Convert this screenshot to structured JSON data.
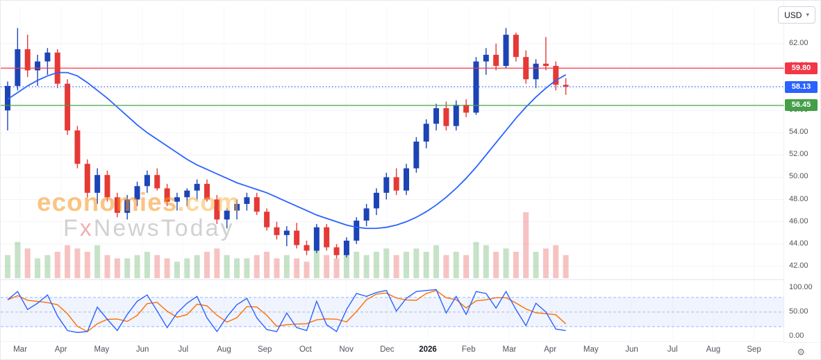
{
  "toolbar": {
    "currency_label": "USD"
  },
  "icons": {
    "chevron_down": "▾",
    "gear": "⚙"
  },
  "watermark": {
    "brand": "economies",
    "brand_suffix": ".com",
    "sub_prefix": "F",
    "sub_x": "x",
    "sub_rest": "NewsToday"
  },
  "time_axis": {
    "labels": [
      "Mar",
      "Apr",
      "May",
      "Jun",
      "Jul",
      "Aug",
      "Sep",
      "Oct",
      "Nov",
      "Dec",
      "2026",
      "Feb",
      "Mar",
      "Apr",
      "May",
      "Jun",
      "Jul",
      "Aug",
      "Sep"
    ],
    "emphasized": "2026"
  },
  "chart_data": {
    "type": "candlestick",
    "title": "",
    "xlabel": "",
    "ylabel": "USD",
    "legend": "none",
    "grid": "faint",
    "price_pane": {
      "ylim": [
        40.9,
        65.4
      ],
      "grid_prices": [
        62,
        60,
        58,
        56,
        54,
        52,
        50,
        48,
        46,
        44,
        42
      ],
      "up_color": "#1c44b5",
      "down_color": "#e53935",
      "ma_color": "#2962ff",
      "ohlc_order": [
        "open",
        "high",
        "low",
        "close"
      ],
      "candles_weekly_ohlc": [
        [
          56.0,
          58.6,
          54.2,
          58.2
        ],
        [
          58.2,
          63.4,
          57.8,
          61.5
        ],
        [
          61.5,
          62.8,
          59.0,
          59.6
        ],
        [
          59.6,
          61.0,
          58.2,
          60.4
        ],
        [
          60.4,
          61.6,
          59.2,
          61.2
        ],
        [
          61.2,
          61.5,
          58.0,
          58.4
        ],
        [
          58.4,
          58.8,
          53.8,
          54.2
        ],
        [
          54.2,
          54.6,
          50.8,
          51.2
        ],
        [
          51.2,
          51.6,
          48.2,
          48.6
        ],
        [
          48.6,
          50.8,
          47.6,
          50.2
        ],
        [
          50.2,
          50.6,
          47.8,
          48.2
        ],
        [
          48.2,
          48.6,
          46.4,
          46.8
        ],
        [
          46.8,
          48.4,
          46.2,
          48.0
        ],
        [
          48.0,
          49.6,
          47.4,
          49.2
        ],
        [
          49.2,
          50.6,
          48.6,
          50.2
        ],
        [
          50.2,
          50.8,
          48.8,
          49.0
        ],
        [
          49.0,
          49.4,
          47.4,
          47.8
        ],
        [
          47.8,
          48.6,
          47.0,
          48.2
        ],
        [
          48.2,
          49.0,
          47.4,
          48.8
        ],
        [
          48.8,
          49.8,
          48.0,
          49.4
        ],
        [
          49.4,
          49.8,
          47.8,
          48.0
        ],
        [
          48.0,
          48.4,
          45.8,
          46.2
        ],
        [
          46.2,
          47.2,
          45.4,
          47.0
        ],
        [
          47.0,
          48.0,
          46.2,
          47.6
        ],
        [
          47.6,
          48.6,
          47.0,
          48.2
        ],
        [
          48.2,
          48.6,
          46.6,
          46.9
        ],
        [
          46.9,
          47.2,
          45.2,
          45.5
        ],
        [
          45.5,
          46.0,
          44.4,
          44.8
        ],
        [
          44.8,
          45.6,
          43.8,
          45.2
        ],
        [
          45.2,
          45.9,
          43.6,
          43.9
        ],
        [
          43.9,
          44.3,
          43.0,
          43.4
        ],
        [
          43.4,
          45.8,
          43.2,
          45.5
        ],
        [
          45.5,
          45.8,
          43.4,
          43.7
        ],
        [
          43.7,
          44.0,
          42.7,
          43.0
        ],
        [
          43.0,
          44.6,
          42.8,
          44.3
        ],
        [
          44.3,
          46.4,
          44.0,
          46.1
        ],
        [
          46.1,
          47.6,
          45.6,
          47.2
        ],
        [
          47.2,
          49.0,
          46.6,
          48.6
        ],
        [
          48.6,
          50.4,
          48.0,
          50.0
        ],
        [
          50.0,
          50.8,
          48.4,
          48.8
        ],
        [
          48.8,
          51.2,
          48.4,
          50.8
        ],
        [
          50.8,
          53.6,
          50.4,
          53.2
        ],
        [
          53.2,
          55.2,
          52.6,
          54.8
        ],
        [
          54.8,
          56.6,
          54.2,
          56.2
        ],
        [
          56.2,
          56.8,
          54.2,
          54.6
        ],
        [
          54.6,
          56.9,
          54.2,
          56.5
        ],
        [
          56.5,
          57.0,
          55.4,
          55.8
        ],
        [
          55.8,
          60.8,
          55.6,
          60.4
        ],
        [
          60.4,
          61.6,
          59.2,
          61.0
        ],
        [
          61.0,
          62.0,
          59.6,
          60.0
        ],
        [
          60.0,
          63.4,
          59.8,
          62.8
        ],
        [
          62.8,
          63.0,
          60.4,
          60.8
        ],
        [
          60.8,
          61.4,
          58.4,
          58.8
        ],
        [
          58.8,
          60.6,
          58.0,
          60.2
        ],
        [
          60.2,
          62.6,
          59.6,
          60.0
        ],
        [
          60.0,
          60.4,
          57.8,
          58.3
        ],
        [
          58.3,
          58.9,
          57.4,
          58.13
        ]
      ],
      "ma_values": [
        57.0,
        57.6,
        58.2,
        58.7,
        59.1,
        59.4,
        59.4,
        59.1,
        58.5,
        57.8,
        57.1,
        56.3,
        55.5,
        54.7,
        54.0,
        53.4,
        52.8,
        52.2,
        51.6,
        51.1,
        50.7,
        50.3,
        49.9,
        49.5,
        49.2,
        48.9,
        48.6,
        48.2,
        47.8,
        47.4,
        47.0,
        46.6,
        46.3,
        46.0,
        45.7,
        45.5,
        45.4,
        45.4,
        45.5,
        45.7,
        46.0,
        46.4,
        46.9,
        47.5,
        48.2,
        49.0,
        49.9,
        50.9,
        52.0,
        53.1,
        54.2,
        55.3,
        56.3,
        57.2,
        58.0,
        58.7,
        59.2
      ],
      "volume_relative": [
        0.35,
        0.55,
        0.45,
        0.3,
        0.35,
        0.4,
        0.5,
        0.45,
        0.4,
        0.5,
        0.35,
        0.3,
        0.3,
        0.35,
        0.4,
        0.35,
        0.3,
        0.25,
        0.3,
        0.35,
        0.4,
        0.45,
        0.35,
        0.3,
        0.3,
        0.35,
        0.4,
        0.3,
        0.35,
        0.3,
        0.25,
        0.45,
        0.35,
        0.3,
        0.35,
        0.4,
        0.35,
        0.4,
        0.45,
        0.35,
        0.4,
        0.45,
        0.4,
        0.5,
        0.35,
        0.4,
        0.35,
        0.55,
        0.5,
        0.4,
        0.45,
        0.4,
        1.0,
        0.4,
        0.45,
        0.5,
        0.35
      ],
      "levels": [
        {
          "name": "resistance",
          "value": 59.8,
          "label": "59.80",
          "color": "#f23645",
          "line": "solid"
        },
        {
          "name": "last-price",
          "value": 58.13,
          "label": "58.13",
          "color": "#2962ff",
          "line": "dotted"
        },
        {
          "name": "support",
          "value": 56.45,
          "label": "56.45",
          "color": "#43a047",
          "line": "solid"
        }
      ]
    },
    "oscillator_pane": {
      "name": "stochastic",
      "ylim": [
        0,
        100
      ],
      "grid_values": [
        100,
        50,
        0
      ],
      "band": [
        20,
        80
      ],
      "k_color": "#2962ff",
      "d_color": "#ff6d00",
      "d_smoothing": 3,
      "k_values": [
        75,
        92,
        55,
        68,
        85,
        42,
        12,
        8,
        10,
        60,
        35,
        12,
        45,
        72,
        85,
        52,
        18,
        48,
        68,
        82,
        38,
        10,
        40,
        65,
        78,
        38,
        14,
        10,
        48,
        18,
        12,
        72,
        24,
        10,
        55,
        88,
        82,
        90,
        94,
        52,
        78,
        92,
        94,
        96,
        48,
        82,
        45,
        92,
        88,
        58,
        92,
        55,
        22,
        68,
        50,
        15,
        12
      ]
    }
  }
}
